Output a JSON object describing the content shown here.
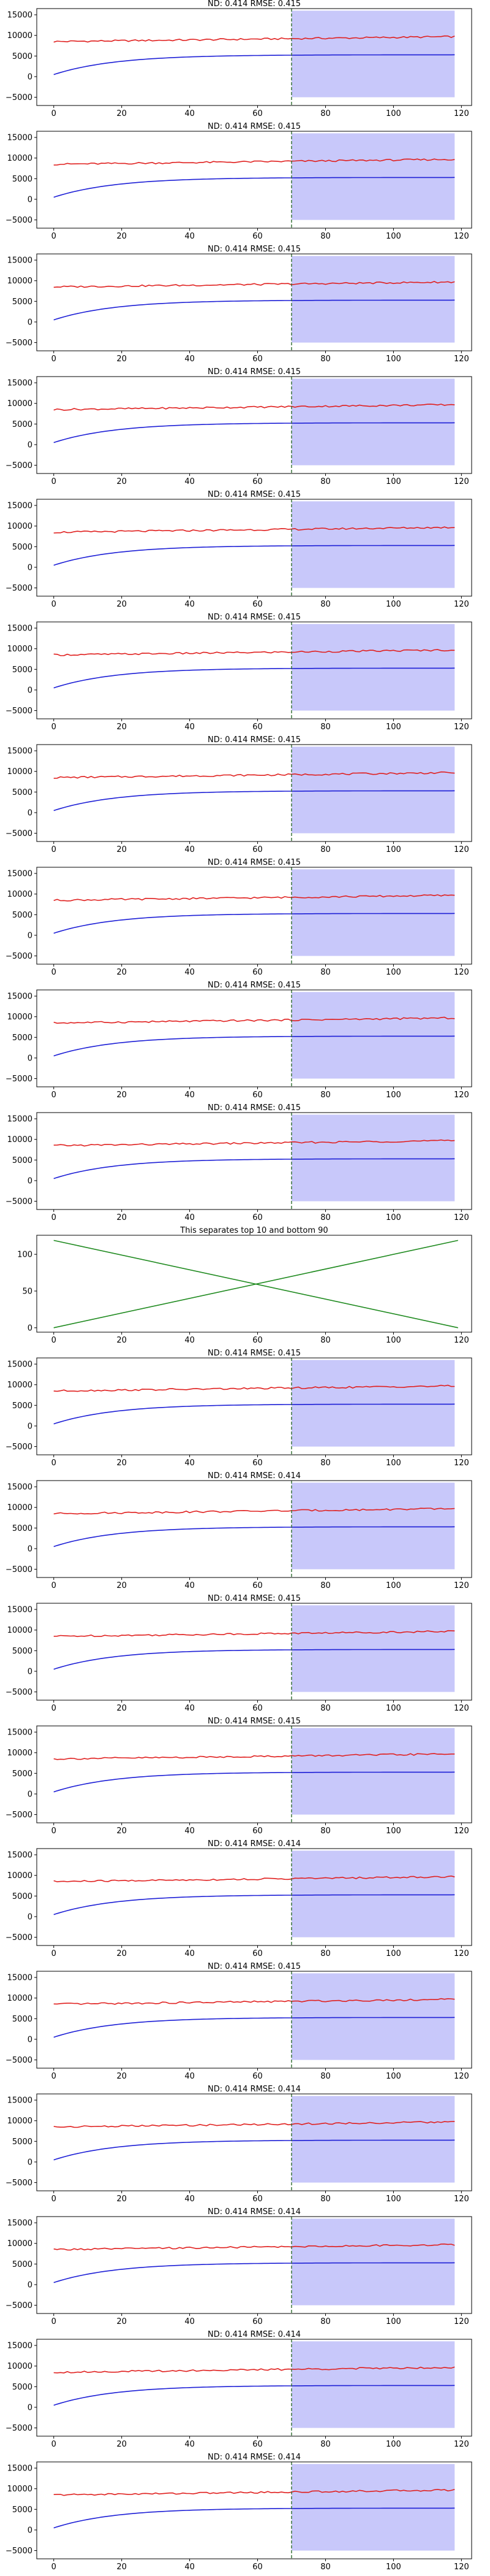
{
  "colors": {
    "actual": "#e0201f",
    "forecast": "#1d1fd6",
    "band": "#c8c8fa",
    "split_line": "#2e6b2e",
    "separator_lines": "#1f8a1f",
    "axes": "#000000"
  },
  "chart_data": [
    {
      "type": "line",
      "title": "ND:  0.414 RMSE:  0.415",
      "xlim": [
        -5,
        123
      ],
      "ylim": [
        -7000,
        16500
      ],
      "yticks": [
        -5000,
        0,
        5000,
        10000,
        15000
      ],
      "xticks": [
        0,
        20,
        40,
        60,
        80,
        100,
        120
      ],
      "split_x": 70,
      "series": [
        {
          "values": {
            "kind": "target",
            "start": 8500,
            "end": 9700,
            "x_end": 118
          }
        },
        {
          "values": {
            "kind": "forecast",
            "start": 500,
            "plateau": 5300,
            "x_end": 118
          }
        }
      ],
      "band": {
        "x_start": 70,
        "x_end": 118,
        "lower": -5000,
        "upper": 16000
      }
    },
    {
      "type": "line",
      "title": "ND:  0.414 RMSE:  0.415",
      "xlim": [
        -5,
        123
      ],
      "ylim": [
        -7000,
        16500
      ],
      "yticks": [
        -5000,
        0,
        5000,
        10000,
        15000
      ],
      "xticks": [
        0,
        20,
        40,
        60,
        80,
        100,
        120
      ],
      "split_x": 70,
      "series": [
        {
          "values": {
            "kind": "target",
            "start": 8500,
            "end": 9700,
            "x_end": 118
          }
        },
        {
          "values": {
            "kind": "forecast",
            "start": 500,
            "plateau": 5300,
            "x_end": 118
          }
        }
      ],
      "band": {
        "x_start": 70,
        "x_end": 118,
        "lower": -5000,
        "upper": 16000
      }
    },
    {
      "type": "line",
      "title": "ND:  0.414 RMSE:  0.415",
      "xlim": [
        -5,
        123
      ],
      "ylim": [
        -7000,
        16500
      ],
      "yticks": [
        -5000,
        0,
        5000,
        10000,
        15000
      ],
      "xticks": [
        0,
        20,
        40,
        60,
        80,
        100,
        120
      ],
      "split_x": 70,
      "series": [
        {
          "values": {
            "kind": "target",
            "start": 8500,
            "end": 9700,
            "x_end": 118
          }
        },
        {
          "values": {
            "kind": "forecast",
            "start": 500,
            "plateau": 5300,
            "x_end": 118
          }
        }
      ],
      "band": {
        "x_start": 70,
        "x_end": 118,
        "lower": -5000,
        "upper": 16000
      }
    },
    {
      "type": "line",
      "title": "ND:  0.414 RMSE:  0.415",
      "xlim": [
        -5,
        123
      ],
      "ylim": [
        -7000,
        16500
      ],
      "yticks": [
        -5000,
        0,
        5000,
        10000,
        15000
      ],
      "xticks": [
        0,
        20,
        40,
        60,
        80,
        100,
        120
      ],
      "split_x": 70,
      "series": [
        {
          "values": {
            "kind": "target",
            "start": 8500,
            "end": 9700,
            "x_end": 118
          }
        },
        {
          "values": {
            "kind": "forecast",
            "start": 500,
            "plateau": 5300,
            "x_end": 118
          }
        }
      ],
      "band": {
        "x_start": 70,
        "x_end": 118,
        "lower": -5000,
        "upper": 16000
      }
    },
    {
      "type": "line",
      "title": "ND:  0.414 RMSE:  0.415",
      "xlim": [
        -5,
        123
      ],
      "ylim": [
        -7000,
        16500
      ],
      "yticks": [
        -5000,
        0,
        5000,
        10000,
        15000
      ],
      "xticks": [
        0,
        20,
        40,
        60,
        80,
        100,
        120
      ],
      "split_x": 70,
      "series": [
        {
          "values": {
            "kind": "target",
            "start": 8500,
            "end": 9700,
            "x_end": 118
          }
        },
        {
          "values": {
            "kind": "forecast",
            "start": 500,
            "plateau": 5300,
            "x_end": 118
          }
        }
      ],
      "band": {
        "x_start": 70,
        "x_end": 118,
        "lower": -5000,
        "upper": 16000
      }
    },
    {
      "type": "line",
      "title": "ND:  0.414 RMSE:  0.415",
      "xlim": [
        -5,
        123
      ],
      "ylim": [
        -7000,
        16500
      ],
      "yticks": [
        -5000,
        0,
        5000,
        10000,
        15000
      ],
      "xticks": [
        0,
        20,
        40,
        60,
        80,
        100,
        120
      ],
      "split_x": 70,
      "series": [
        {
          "values": {
            "kind": "target",
            "start": 8500,
            "end": 9700,
            "x_end": 118
          }
        },
        {
          "values": {
            "kind": "forecast",
            "start": 500,
            "plateau": 5300,
            "x_end": 118
          }
        }
      ],
      "band": {
        "x_start": 70,
        "x_end": 118,
        "lower": -5000,
        "upper": 16000
      }
    },
    {
      "type": "line",
      "title": "ND:  0.414 RMSE:  0.415",
      "xlim": [
        -5,
        123
      ],
      "ylim": [
        -7000,
        16500
      ],
      "yticks": [
        -5000,
        0,
        5000,
        10000,
        15000
      ],
      "xticks": [
        0,
        20,
        40,
        60,
        80,
        100,
        120
      ],
      "split_x": 70,
      "series": [
        {
          "values": {
            "kind": "target",
            "start": 8500,
            "end": 9700,
            "x_end": 118
          }
        },
        {
          "values": {
            "kind": "forecast",
            "start": 500,
            "plateau": 5300,
            "x_end": 118
          }
        }
      ],
      "band": {
        "x_start": 70,
        "x_end": 118,
        "lower": -5000,
        "upper": 16000
      }
    },
    {
      "type": "line",
      "title": "ND:  0.414 RMSE:  0.415",
      "xlim": [
        -5,
        123
      ],
      "ylim": [
        -7000,
        16500
      ],
      "yticks": [
        -5000,
        0,
        5000,
        10000,
        15000
      ],
      "xticks": [
        0,
        20,
        40,
        60,
        80,
        100,
        120
      ],
      "split_x": 70,
      "series": [
        {
          "values": {
            "kind": "target",
            "start": 8500,
            "end": 9700,
            "x_end": 118
          }
        },
        {
          "values": {
            "kind": "forecast",
            "start": 500,
            "plateau": 5300,
            "x_end": 118
          }
        }
      ],
      "band": {
        "x_start": 70,
        "x_end": 118,
        "lower": -5000,
        "upper": 16000
      }
    },
    {
      "type": "line",
      "title": "ND:  0.414 RMSE:  0.415",
      "xlim": [
        -5,
        123
      ],
      "ylim": [
        -7000,
        16500
      ],
      "yticks": [
        -5000,
        0,
        5000,
        10000,
        15000
      ],
      "xticks": [
        0,
        20,
        40,
        60,
        80,
        100,
        120
      ],
      "split_x": 70,
      "series": [
        {
          "values": {
            "kind": "target",
            "start": 8500,
            "end": 9700,
            "x_end": 118
          }
        },
        {
          "values": {
            "kind": "forecast",
            "start": 500,
            "plateau": 5300,
            "x_end": 118
          }
        }
      ],
      "band": {
        "x_start": 70,
        "x_end": 118,
        "lower": -5000,
        "upper": 16000
      }
    },
    {
      "type": "line",
      "title": "ND:  0.414 RMSE:  0.415",
      "xlim": [
        -5,
        123
      ],
      "ylim": [
        -7000,
        16500
      ],
      "yticks": [
        -5000,
        0,
        5000,
        10000,
        15000
      ],
      "xticks": [
        0,
        20,
        40,
        60,
        80,
        100,
        120
      ],
      "split_x": 70,
      "series": [
        {
          "values": {
            "kind": "target",
            "start": 8500,
            "end": 9700,
            "x_end": 118
          }
        },
        {
          "values": {
            "kind": "forecast",
            "start": 500,
            "plateau": 5300,
            "x_end": 118
          }
        }
      ],
      "band": {
        "x_start": 70,
        "x_end": 118,
        "lower": -5000,
        "upper": 16000
      }
    },
    {
      "type": "line",
      "title": "This separates top 10 and bottom 90",
      "xlim": [
        -5,
        123
      ],
      "ylim": [
        -6,
        126
      ],
      "yticks": [
        0,
        50,
        100
      ],
      "xticks": [
        0,
        20,
        40,
        60,
        80,
        100,
        120
      ],
      "series": [
        {
          "x": [
            0,
            119
          ],
          "values": [
            0,
            119
          ]
        },
        {
          "x": [
            0,
            119
          ],
          "values": [
            119,
            0
          ]
        }
      ]
    },
    {
      "type": "line",
      "title": "ND:  0.414 RMSE:  0.415",
      "xlim": [
        -5,
        123
      ],
      "ylim": [
        -7000,
        16500
      ],
      "yticks": [
        -5000,
        0,
        5000,
        10000,
        15000
      ],
      "xticks": [
        0,
        20,
        40,
        60,
        80,
        100,
        120
      ],
      "split_x": 70,
      "series": [
        {
          "values": {
            "kind": "target",
            "start": 8500,
            "end": 9700,
            "x_end": 118
          }
        },
        {
          "values": {
            "kind": "forecast",
            "start": 500,
            "plateau": 5300,
            "x_end": 118
          }
        }
      ],
      "band": {
        "x_start": 70,
        "x_end": 118,
        "lower": -5000,
        "upper": 16000
      }
    },
    {
      "type": "line",
      "title": "ND:  0.414 RMSE:  0.414",
      "xlim": [
        -5,
        123
      ],
      "ylim": [
        -7000,
        16500
      ],
      "yticks": [
        -5000,
        0,
        5000,
        10000,
        15000
      ],
      "xticks": [
        0,
        20,
        40,
        60,
        80,
        100,
        120
      ],
      "split_x": 70,
      "series": [
        {
          "values": {
            "kind": "target",
            "start": 8500,
            "end": 9700,
            "x_end": 118
          }
        },
        {
          "values": {
            "kind": "forecast",
            "start": 500,
            "plateau": 5300,
            "x_end": 118
          }
        }
      ],
      "band": {
        "x_start": 70,
        "x_end": 118,
        "lower": -5000,
        "upper": 16000
      }
    },
    {
      "type": "line",
      "title": "ND:  0.414 RMSE:  0.415",
      "xlim": [
        -5,
        123
      ],
      "ylim": [
        -7000,
        16500
      ],
      "yticks": [
        -5000,
        0,
        5000,
        10000,
        15000
      ],
      "xticks": [
        0,
        20,
        40,
        60,
        80,
        100,
        120
      ],
      "split_x": 70,
      "series": [
        {
          "values": {
            "kind": "target",
            "start": 8500,
            "end": 9700,
            "x_end": 118
          }
        },
        {
          "values": {
            "kind": "forecast",
            "start": 500,
            "plateau": 5300,
            "x_end": 118
          }
        }
      ],
      "band": {
        "x_start": 70,
        "x_end": 118,
        "lower": -5000,
        "upper": 16000
      }
    },
    {
      "type": "line",
      "title": "ND:  0.414 RMSE:  0.415",
      "xlim": [
        -5,
        123
      ],
      "ylim": [
        -7000,
        16500
      ],
      "yticks": [
        -5000,
        0,
        5000,
        10000,
        15000
      ],
      "xticks": [
        0,
        20,
        40,
        60,
        80,
        100,
        120
      ],
      "split_x": 70,
      "series": [
        {
          "values": {
            "kind": "target",
            "start": 8500,
            "end": 9700,
            "x_end": 118
          }
        },
        {
          "values": {
            "kind": "forecast",
            "start": 500,
            "plateau": 5300,
            "x_end": 118
          }
        }
      ],
      "band": {
        "x_start": 70,
        "x_end": 118,
        "lower": -5000,
        "upper": 16000
      }
    },
    {
      "type": "line",
      "title": "ND:  0.414 RMSE:  0.414",
      "xlim": [
        -5,
        123
      ],
      "ylim": [
        -7000,
        16500
      ],
      "yticks": [
        -5000,
        0,
        5000,
        10000,
        15000
      ],
      "xticks": [
        0,
        20,
        40,
        60,
        80,
        100,
        120
      ],
      "split_x": 70,
      "series": [
        {
          "values": {
            "kind": "target",
            "start": 8500,
            "end": 9700,
            "x_end": 118
          }
        },
        {
          "values": {
            "kind": "forecast",
            "start": 500,
            "plateau": 5300,
            "x_end": 118
          }
        }
      ],
      "band": {
        "x_start": 70,
        "x_end": 118,
        "lower": -5000,
        "upper": 16000
      }
    },
    {
      "type": "line",
      "title": "ND:  0.414 RMSE:  0.415",
      "xlim": [
        -5,
        123
      ],
      "ylim": [
        -7000,
        16500
      ],
      "yticks": [
        -5000,
        0,
        5000,
        10000,
        15000
      ],
      "xticks": [
        0,
        20,
        40,
        60,
        80,
        100,
        120
      ],
      "split_x": 70,
      "series": [
        {
          "values": {
            "kind": "target",
            "start": 8500,
            "end": 9700,
            "x_end": 118
          }
        },
        {
          "values": {
            "kind": "forecast",
            "start": 500,
            "plateau": 5300,
            "x_end": 118
          }
        }
      ],
      "band": {
        "x_start": 70,
        "x_end": 118,
        "lower": -5000,
        "upper": 16000
      }
    },
    {
      "type": "line",
      "title": "ND:  0.414 RMSE:  0.414",
      "xlim": [
        -5,
        123
      ],
      "ylim": [
        -7000,
        16500
      ],
      "yticks": [
        -5000,
        0,
        5000,
        10000,
        15000
      ],
      "xticks": [
        0,
        20,
        40,
        60,
        80,
        100,
        120
      ],
      "split_x": 70,
      "series": [
        {
          "values": {
            "kind": "target",
            "start": 8500,
            "end": 9700,
            "x_end": 118
          }
        },
        {
          "values": {
            "kind": "forecast",
            "start": 500,
            "plateau": 5300,
            "x_end": 118
          }
        }
      ],
      "band": {
        "x_start": 70,
        "x_end": 118,
        "lower": -5000,
        "upper": 16000
      }
    },
    {
      "type": "line",
      "title": "ND:  0.414 RMSE:  0.414",
      "xlim": [
        -5,
        123
      ],
      "ylim": [
        -7000,
        16500
      ],
      "yticks": [
        -5000,
        0,
        5000,
        10000,
        15000
      ],
      "xticks": [
        0,
        20,
        40,
        60,
        80,
        100,
        120
      ],
      "split_x": 70,
      "series": [
        {
          "values": {
            "kind": "target",
            "start": 8500,
            "end": 9700,
            "x_end": 118
          }
        },
        {
          "values": {
            "kind": "forecast",
            "start": 500,
            "plateau": 5300,
            "x_end": 118
          }
        }
      ],
      "band": {
        "x_start": 70,
        "x_end": 118,
        "lower": -5000,
        "upper": 16000
      }
    },
    {
      "type": "line",
      "title": "ND:  0.414 RMSE:  0.414",
      "xlim": [
        -5,
        123
      ],
      "ylim": [
        -7000,
        16500
      ],
      "yticks": [
        -5000,
        0,
        5000,
        10000,
        15000
      ],
      "xticks": [
        0,
        20,
        40,
        60,
        80,
        100,
        120
      ],
      "split_x": 70,
      "series": [
        {
          "values": {
            "kind": "target",
            "start": 8500,
            "end": 9700,
            "x_end": 118
          }
        },
        {
          "values": {
            "kind": "forecast",
            "start": 500,
            "plateau": 5300,
            "x_end": 118
          }
        }
      ],
      "band": {
        "x_start": 70,
        "x_end": 118,
        "lower": -5000,
        "upper": 16000
      }
    },
    {
      "type": "line",
      "title": "ND:  0.414 RMSE:  0.414",
      "xlim": [
        -5,
        123
      ],
      "ylim": [
        -7000,
        16500
      ],
      "yticks": [
        -5000,
        0,
        5000,
        10000,
        15000
      ],
      "xticks": [
        0,
        20,
        40,
        60,
        80,
        100,
        120
      ],
      "split_x": 70,
      "series": [
        {
          "values": {
            "kind": "target",
            "start": 8500,
            "end": 9700,
            "x_end": 118
          }
        },
        {
          "values": {
            "kind": "forecast",
            "start": 500,
            "plateau": 5300,
            "x_end": 118
          }
        }
      ],
      "band": {
        "x_start": 70,
        "x_end": 118,
        "lower": -5000,
        "upper": 16000
      }
    }
  ]
}
